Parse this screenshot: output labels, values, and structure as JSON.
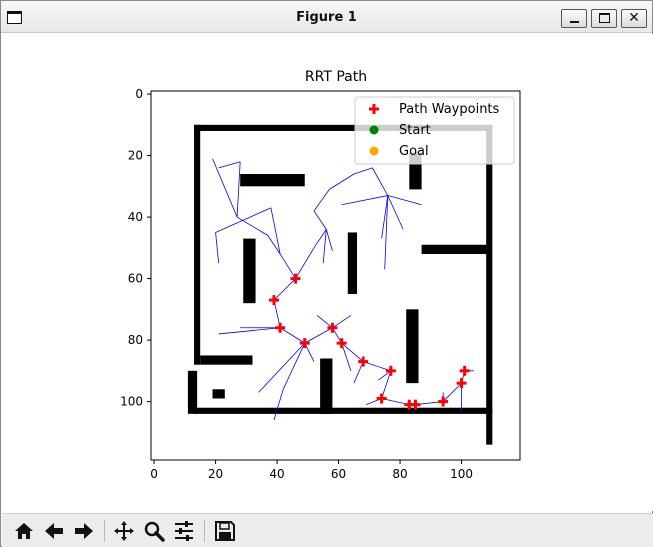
{
  "window": {
    "title": "Figure 1",
    "controls": [
      "minimize",
      "maximize",
      "close"
    ]
  },
  "toolbar": {
    "icons": [
      "home-icon",
      "back-arrow-icon",
      "forward-arrow-icon",
      "pan-icon",
      "zoom-icon",
      "configure-subplots-icon",
      "save-icon"
    ]
  },
  "chart_data": {
    "type": "scatter",
    "title": "RRT Path",
    "xlabel": "",
    "ylabel": "",
    "xlim": [
      -1,
      119
    ],
    "ylim": [
      119,
      -1
    ],
    "y_inverted": true,
    "xticks": [
      0,
      20,
      40,
      60,
      80,
      100
    ],
    "yticks": [
      0,
      20,
      40,
      60,
      80,
      100
    ],
    "grid": false,
    "legend_position": "top-right",
    "legend": [
      {
        "label": "Path Waypoints",
        "marker": "plus",
        "color": "#ff0000"
      },
      {
        "label": "Start",
        "marker": "circle",
        "color": "#008000"
      },
      {
        "label": "Goal",
        "marker": "circle",
        "color": "#ffa500"
      }
    ],
    "colors": {
      "tree": "#0000ff",
      "path": "#ff0000",
      "obstacle": "#000000"
    },
    "path_waypoints": [
      [
        46,
        60
      ],
      [
        39,
        67
      ],
      [
        41,
        76
      ],
      [
        49,
        81
      ],
      [
        58,
        76
      ],
      [
        61,
        81
      ],
      [
        68,
        87
      ],
      [
        77,
        90
      ],
      [
        74,
        99
      ],
      [
        83,
        101
      ],
      [
        85,
        101
      ],
      [
        94,
        100
      ],
      [
        100,
        94
      ],
      [
        101,
        90
      ]
    ],
    "tree_edges": [
      [
        [
          46,
          60
        ],
        [
          39,
          67
        ]
      ],
      [
        [
          39,
          67
        ],
        [
          41,
          76
        ]
      ],
      [
        [
          41,
          76
        ],
        [
          49,
          81
        ]
      ],
      [
        [
          49,
          81
        ],
        [
          58,
          76
        ]
      ],
      [
        [
          58,
          76
        ],
        [
          61,
          81
        ]
      ],
      [
        [
          61,
          81
        ],
        [
          68,
          87
        ]
      ],
      [
        [
          68,
          87
        ],
        [
          77,
          90
        ]
      ],
      [
        [
          77,
          90
        ],
        [
          74,
          99
        ]
      ],
      [
        [
          74,
          99
        ],
        [
          83,
          101
        ]
      ],
      [
        [
          83,
          101
        ],
        [
          85,
          101
        ]
      ],
      [
        [
          85,
          101
        ],
        [
          94,
          100
        ]
      ],
      [
        [
          94,
          100
        ],
        [
          100,
          94
        ]
      ],
      [
        [
          100,
          94
        ],
        [
          101,
          90
        ]
      ],
      [
        [
          46,
          60
        ],
        [
          41,
          52
        ]
      ],
      [
        [
          41,
          52
        ],
        [
          37,
          46
        ]
      ],
      [
        [
          37,
          46
        ],
        [
          27,
          40
        ]
      ],
      [
        [
          27,
          40
        ],
        [
          19,
          21
        ]
      ],
      [
        [
          27,
          40
        ],
        [
          28,
          22
        ]
      ],
      [
        [
          28,
          22
        ],
        [
          21,
          24
        ]
      ],
      [
        [
          41,
          52
        ],
        [
          38,
          37
        ]
      ],
      [
        [
          38,
          37
        ],
        [
          20,
          45
        ]
      ],
      [
        [
          20,
          45
        ],
        [
          21,
          55
        ]
      ],
      [
        [
          46,
          60
        ],
        [
          52,
          50
        ]
      ],
      [
        [
          52,
          50
        ],
        [
          56,
          44
        ]
      ],
      [
        [
          56,
          44
        ],
        [
          52,
          38
        ]
      ],
      [
        [
          52,
          38
        ],
        [
          57,
          31
        ]
      ],
      [
        [
          57,
          31
        ],
        [
          65,
          26
        ]
      ],
      [
        [
          65,
          26
        ],
        [
          71,
          24
        ]
      ],
      [
        [
          71,
          24
        ],
        [
          76,
          33
        ]
      ],
      [
        [
          76,
          33
        ],
        [
          87,
          36
        ]
      ],
      [
        [
          76,
          33
        ],
        [
          81,
          44
        ]
      ],
      [
        [
          76,
          33
        ],
        [
          61,
          36
        ]
      ],
      [
        [
          76,
          33
        ],
        [
          74,
          47
        ]
      ],
      [
        [
          76,
          33
        ],
        [
          75,
          57
        ]
      ],
      [
        [
          56,
          44
        ],
        [
          58,
          51
        ]
      ],
      [
        [
          56,
          44
        ],
        [
          55,
          55
        ]
      ],
      [
        [
          41,
          76
        ],
        [
          21,
          78
        ]
      ],
      [
        [
          41,
          76
        ],
        [
          28,
          76
        ]
      ],
      [
        [
          49,
          81
        ],
        [
          52,
          87
        ]
      ],
      [
        [
          49,
          81
        ],
        [
          42,
          96
        ]
      ],
      [
        [
          42,
          96
        ],
        [
          39,
          106
        ]
      ],
      [
        [
          49,
          81
        ],
        [
          34,
          97
        ]
      ],
      [
        [
          58,
          76
        ],
        [
          64,
          72
        ]
      ],
      [
        [
          58,
          76
        ],
        [
          53,
          72
        ]
      ],
      [
        [
          61,
          81
        ],
        [
          64,
          90
        ]
      ],
      [
        [
          68,
          87
        ],
        [
          65,
          94
        ]
      ],
      [
        [
          77,
          90
        ],
        [
          73,
          93
        ]
      ],
      [
        [
          74,
          99
        ],
        [
          69,
          101
        ]
      ],
      [
        [
          85,
          101
        ],
        [
          84,
          104
        ]
      ],
      [
        [
          94,
          100
        ],
        [
          94,
          97
        ]
      ],
      [
        [
          100,
          94
        ],
        [
          100,
          104
        ]
      ],
      [
        [
          101,
          90
        ],
        [
          104,
          90
        ]
      ]
    ],
    "start": [
      46,
      60
    ],
    "goal": [
      101,
      90
    ],
    "obstacles": [
      [
        13,
        10,
        97,
        2
      ],
      [
        13,
        10,
        2,
        78
      ],
      [
        108,
        10,
        2,
        104
      ],
      [
        13,
        102,
        97,
        2
      ],
      [
        28,
        26,
        21,
        4
      ],
      [
        29,
        47,
        4,
        21
      ],
      [
        63,
        45,
        3,
        20
      ],
      [
        87,
        49,
        22,
        3
      ],
      [
        83,
        19,
        4,
        12
      ],
      [
        82,
        70,
        4,
        24
      ],
      [
        54,
        86,
        4,
        18
      ],
      [
        15,
        85,
        17,
        3
      ],
      [
        11,
        90,
        3,
        14
      ],
      [
        19,
        96,
        4,
        3
      ]
    ]
  }
}
